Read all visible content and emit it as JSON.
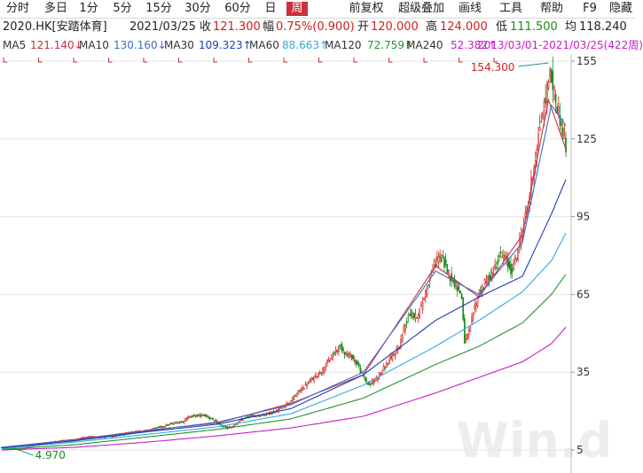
{
  "toolbar": {
    "periods": [
      "分时",
      "多日",
      "1分",
      "5分",
      "15分",
      "30分",
      "60分",
      "日",
      "周"
    ],
    "active_index": 8,
    "actions": [
      "前复权",
      "超级叠加",
      "画线",
      "工具",
      "帮助",
      "F9",
      "隐藏"
    ]
  },
  "info": {
    "code": "2020.HK[安踏体育]",
    "date": "2021/03/25",
    "close_label": "收",
    "close": "121.300",
    "change_label": "幅",
    "change": "0.75%(0.900)",
    "open_label": "开",
    "open": "120.000",
    "high_label": "高",
    "high": "124.000",
    "low_label": "低",
    "low": "111.500",
    "avg_label": "均",
    "avg": "118.240"
  },
  "ma": {
    "ma5": "MA5",
    "ma5_val": "121.140↓",
    "ma10": "MA10",
    "ma10_val": "130.160↓",
    "ma30": "MA30",
    "ma30_val": "109.323↑",
    "ma60": "MA60",
    "ma60_val": "88.663↑",
    "ma120": "MA120",
    "ma120_val": "72.759↑",
    "ma240": "MA240",
    "ma240_val": "52.382↑",
    "range": "2013/03/01-2021/03/25(422周)"
  },
  "colors": {
    "up": "#d21e1e",
    "down": "#1e8c1e",
    "ma5": "#c8323c",
    "ma10": "#3c6cc8",
    "ma30": "#1e3cb4",
    "ma60": "#32aadc",
    "ma120": "#1e9632",
    "ma240": "#c81ec8",
    "grid": "#e6e6e6",
    "axis_text": "#333333"
  },
  "chart_data": {
    "type": "candlestick",
    "title": "2020.HK[安踏体育]",
    "period": "weekly",
    "x_range": [
      "2013/03/01",
      "2021/03/25"
    ],
    "bars": 422,
    "ylim": [
      5,
      160
    ],
    "y_ticks": [
      5,
      35,
      65,
      95,
      125,
      155
    ],
    "grid": true,
    "annotations": [
      {
        "label": "154.300",
        "kind": "high",
        "value": 154.3,
        "x": "2021/02"
      },
      {
        "label": "4.970",
        "kind": "low",
        "value": 4.97,
        "x": "2013/06"
      }
    ],
    "price_path": [
      [
        0,
        6.0
      ],
      [
        8,
        5.5
      ],
      [
        12,
        5.0
      ],
      [
        20,
        6.5
      ],
      [
        30,
        7.5
      ],
      [
        40,
        8.5
      ],
      [
        50,
        9.0
      ],
      [
        60,
        10.0
      ],
      [
        70,
        10.0
      ],
      [
        80,
        10.5
      ],
      [
        90,
        12.0
      ],
      [
        100,
        12.5
      ],
      [
        110,
        14.0
      ],
      [
        120,
        15.5
      ],
      [
        125,
        16.0
      ],
      [
        130,
        18.0
      ],
      [
        140,
        18.5
      ],
      [
        145,
        17.0
      ],
      [
        150,
        15.0
      ],
      [
        155,
        13.5
      ],
      [
        160,
        14.0
      ],
      [
        165,
        16.5
      ],
      [
        170,
        18.0
      ],
      [
        180,
        18.5
      ],
      [
        190,
        20.0
      ],
      [
        200,
        24.0
      ],
      [
        206,
        28.0
      ],
      [
        212,
        31.0
      ],
      [
        218,
        34.0
      ],
      [
        222,
        36.0
      ],
      [
        227,
        40.0
      ],
      [
        232,
        44.0
      ],
      [
        234,
        45.0
      ],
      [
        238,
        42.0
      ],
      [
        242,
        41.0
      ],
      [
        246,
        38.0
      ],
      [
        250,
        33.0
      ],
      [
        254,
        30.0
      ],
      [
        258,
        32.0
      ],
      [
        262,
        35.0
      ],
      [
        266,
        38.0
      ],
      [
        270,
        41.0
      ],
      [
        275,
        45.0
      ],
      [
        278,
        52.0
      ],
      [
        282,
        58.0
      ],
      [
        286,
        56.0
      ],
      [
        290,
        60.0
      ],
      [
        295,
        70.0
      ],
      [
        298,
        75.0
      ],
      [
        302,
        80.0
      ],
      [
        305,
        78.0
      ],
      [
        310,
        72.0
      ],
      [
        315,
        68.0
      ],
      [
        318,
        64.0
      ],
      [
        320,
        47.0
      ],
      [
        323,
        50.0
      ],
      [
        326,
        58.0
      ],
      [
        330,
        66.0
      ],
      [
        335,
        70.0
      ],
      [
        340,
        74.0
      ],
      [
        344,
        80.0
      ],
      [
        348,
        79.0
      ],
      [
        352,
        74.0
      ],
      [
        356,
        80.0
      ],
      [
        360,
        90.0
      ],
      [
        364,
        100.0
      ],
      [
        368,
        115.0
      ],
      [
        372,
        130.0
      ],
      [
        376,
        140.0
      ],
      [
        378,
        150.0
      ],
      [
        380,
        148.0
      ],
      [
        383,
        140.0
      ],
      [
        385,
        135.0
      ],
      [
        388,
        128.0
      ],
      [
        390,
        121.3
      ]
    ],
    "series": [
      {
        "name": "MA5",
        "values": [
          [
            0,
            6.0
          ],
          [
            50,
            9.0
          ],
          [
            100,
            12.5
          ],
          [
            150,
            15.5
          ],
          [
            200,
            23.0
          ],
          [
            250,
            34.0
          ],
          [
            300,
            76.0
          ],
          [
            330,
            64.0
          ],
          [
            360,
            88.0
          ],
          [
            378,
            140.0
          ],
          [
            390,
            121.14
          ]
        ]
      },
      {
        "name": "MA10",
        "values": [
          [
            0,
            6.0
          ],
          [
            50,
            8.8
          ],
          [
            100,
            12.3
          ],
          [
            150,
            15.8
          ],
          [
            200,
            22.5
          ],
          [
            250,
            35.0
          ],
          [
            300,
            74.0
          ],
          [
            330,
            65.0
          ],
          [
            360,
            85.0
          ],
          [
            380,
            138.0
          ],
          [
            390,
            130.16
          ]
        ]
      },
      {
        "name": "MA30",
        "values": [
          [
            0,
            5.8
          ],
          [
            50,
            8.5
          ],
          [
            100,
            12.0
          ],
          [
            150,
            15.0
          ],
          [
            200,
            21.0
          ],
          [
            250,
            34.0
          ],
          [
            300,
            55.0
          ],
          [
            330,
            64.0
          ],
          [
            360,
            72.0
          ],
          [
            380,
            96.0
          ],
          [
            390,
            109.323
          ]
        ]
      },
      {
        "name": "MA60",
        "values": [
          [
            0,
            5.5
          ],
          [
            50,
            8.0
          ],
          [
            100,
            11.0
          ],
          [
            150,
            14.0
          ],
          [
            200,
            19.0
          ],
          [
            250,
            30.0
          ],
          [
            300,
            45.0
          ],
          [
            330,
            55.0
          ],
          [
            360,
            66.0
          ],
          [
            380,
            78.0
          ],
          [
            390,
            88.663
          ]
        ]
      },
      {
        "name": "MA120",
        "values": [
          [
            0,
            5.2
          ],
          [
            50,
            7.0
          ],
          [
            100,
            10.0
          ],
          [
            150,
            13.0
          ],
          [
            200,
            17.0
          ],
          [
            250,
            25.0
          ],
          [
            300,
            38.0
          ],
          [
            330,
            45.0
          ],
          [
            360,
            54.0
          ],
          [
            380,
            65.0
          ],
          [
            390,
            72.759
          ]
        ]
      },
      {
        "name": "MA240",
        "values": [
          [
            0,
            5.0
          ],
          [
            50,
            6.0
          ],
          [
            100,
            8.0
          ],
          [
            150,
            10.5
          ],
          [
            200,
            13.5
          ],
          [
            250,
            18.0
          ],
          [
            300,
            27.0
          ],
          [
            330,
            33.0
          ],
          [
            360,
            39.0
          ],
          [
            380,
            46.0
          ],
          [
            390,
            52.382
          ]
        ]
      }
    ]
  }
}
